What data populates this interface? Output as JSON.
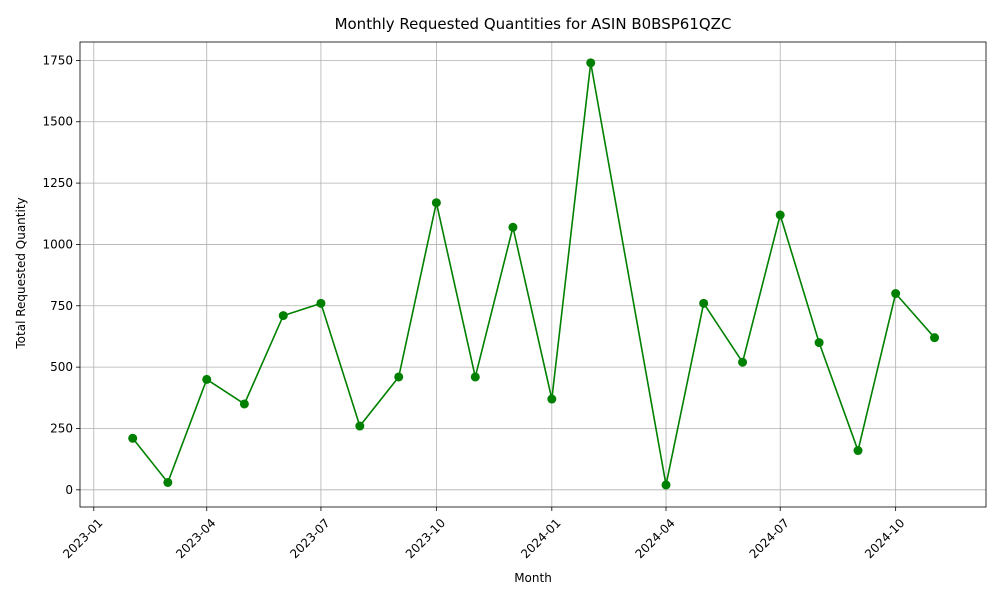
{
  "chart_data": {
    "type": "line",
    "title": "Monthly Requested Quantities for ASIN B0BSP61QZC",
    "xlabel": "Month",
    "ylabel": "Total Requested Quantity",
    "x_ticks": [
      "2023-01",
      "2023-04",
      "2023-07",
      "2023-10",
      "2024-01",
      "2024-04",
      "2024-07",
      "2024-10"
    ],
    "y_ticks": [
      "0",
      "250",
      "500",
      "750",
      "1000",
      "1250",
      "1500",
      "1750"
    ],
    "ylim": [
      -70,
      1825
    ],
    "xlim": [
      "2022-12-21",
      "2024-12-12"
    ],
    "grid": true,
    "color": "#008000",
    "x": [
      "2023-02-01",
      "2023-03-01",
      "2023-04-01",
      "2023-05-01",
      "2023-06-01",
      "2023-07-01",
      "2023-08-01",
      "2023-09-01",
      "2023-10-01",
      "2023-11-01",
      "2023-12-01",
      "2024-01-01",
      "2024-02-01",
      "2024-04-01",
      "2024-05-01",
      "2024-06-01",
      "2024-07-01",
      "2024-08-01",
      "2024-09-01",
      "2024-10-01",
      "2024-11-01"
    ],
    "values": [
      210,
      30,
      450,
      350,
      710,
      760,
      260,
      460,
      1170,
      460,
      1070,
      370,
      1740,
      20,
      760,
      520,
      1120,
      600,
      160,
      800,
      620
    ]
  }
}
